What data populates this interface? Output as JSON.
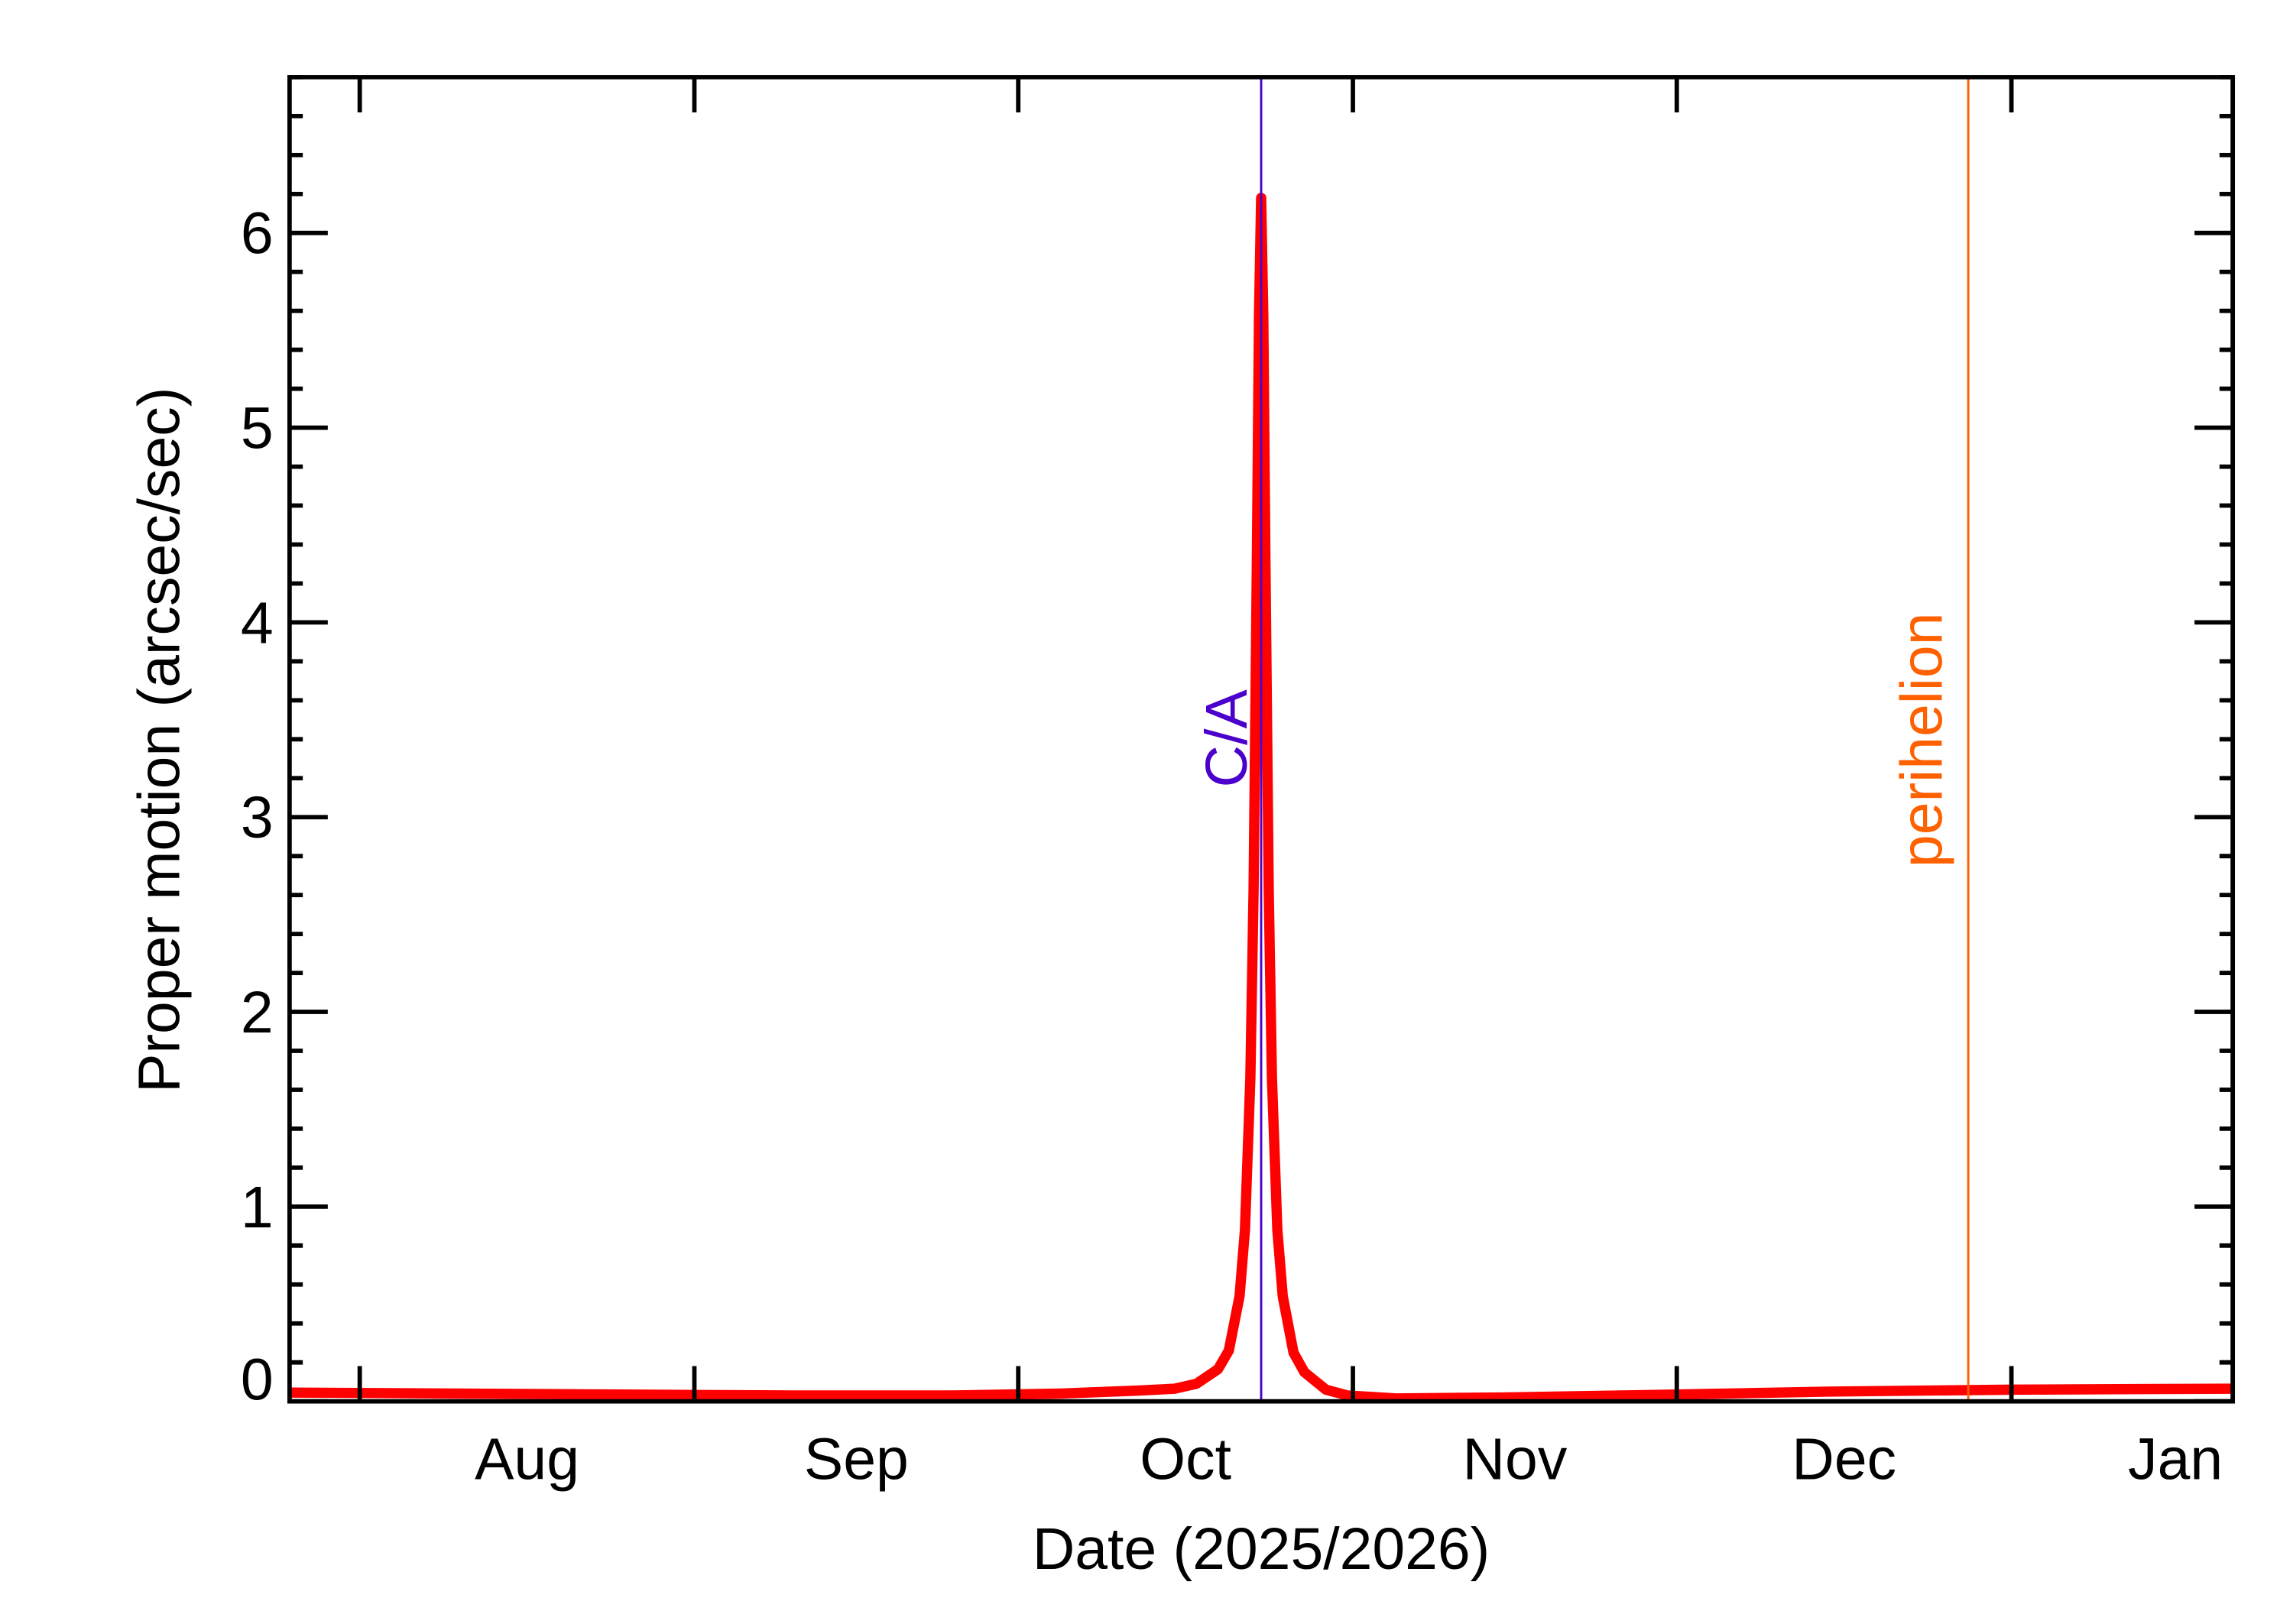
{
  "chart_data": {
    "type": "line",
    "title": "",
    "xlabel": "Date (2025/2026)",
    "ylabel": "Proper motion (arcsec/sec)",
    "xlim": [
      "2025-07-25T12:00",
      "2026-01-21T12:00"
    ],
    "ylim": [
      0,
      6.8
    ],
    "x_ticks": [
      {
        "date": "2025-08-01",
        "label": "Aug"
      },
      {
        "date": "2025-09-01",
        "label": "Sep"
      },
      {
        "date": "2025-10-01",
        "label": "Oct"
      },
      {
        "date": "2025-11-01",
        "label": "Nov"
      },
      {
        "date": "2025-12-01",
        "label": "Dec"
      },
      {
        "date": "2026-01-01",
        "label": "Jan"
      }
    ],
    "y_ticks": [
      0,
      1,
      2,
      3,
      4,
      5,
      6
    ],
    "grid": false,
    "series": [
      {
        "color": "#ff0000",
        "points": [
          [
            "2025-07-25T12:00",
            0.045
          ],
          [
            "2025-08-10T00:00",
            0.04
          ],
          [
            "2025-08-25T00:00",
            0.035
          ],
          [
            "2025-09-10T00:00",
            0.03
          ],
          [
            "2025-09-25T00:00",
            0.03
          ],
          [
            "2025-10-05T00:00",
            0.04
          ],
          [
            "2025-10-12T00:00",
            0.055
          ],
          [
            "2025-10-15T12:00",
            0.065
          ],
          [
            "2025-10-17T12:00",
            0.09
          ],
          [
            "2025-10-19T12:00",
            0.165
          ],
          [
            "2025-10-20T12:00",
            0.26
          ],
          [
            "2025-10-21T12:00",
            0.54
          ],
          [
            "2025-10-22T00:00",
            0.88
          ],
          [
            "2025-10-22T12:00",
            1.66
          ],
          [
            "2025-10-22T19:12",
            2.63
          ],
          [
            "2025-10-23T02:24",
            4.29
          ],
          [
            "2025-10-23T07:12",
            5.57
          ],
          [
            "2025-10-23T12:00",
            6.18
          ],
          [
            "2025-10-23T16:48",
            5.57
          ],
          [
            "2025-10-23T21:36",
            4.29
          ],
          [
            "2025-10-24T04:48",
            2.63
          ],
          [
            "2025-10-24T12:00",
            1.66
          ],
          [
            "2025-10-25T00:00",
            0.88
          ],
          [
            "2025-10-25T12:00",
            0.54
          ],
          [
            "2025-10-26T12:00",
            0.25
          ],
          [
            "2025-10-27T12:00",
            0.15
          ],
          [
            "2025-10-29T12:00",
            0.06
          ],
          [
            "2025-10-31T12:00",
            0.03
          ],
          [
            "2025-11-05T00:00",
            0.015
          ],
          [
            "2025-11-15T00:00",
            0.02
          ],
          [
            "2025-12-01T00:00",
            0.035
          ],
          [
            "2025-12-15T00:00",
            0.05
          ],
          [
            "2026-01-01T00:00",
            0.06
          ],
          [
            "2026-01-21T12:00",
            0.065
          ]
        ]
      }
    ],
    "annotations": [
      {
        "label": "C/A",
        "date": "2025-10-23T12:00",
        "color": "#4b00cc"
      },
      {
        "label": "perihelion",
        "date": "2025-12-28T00:00",
        "color": "#ff6000"
      }
    ]
  }
}
